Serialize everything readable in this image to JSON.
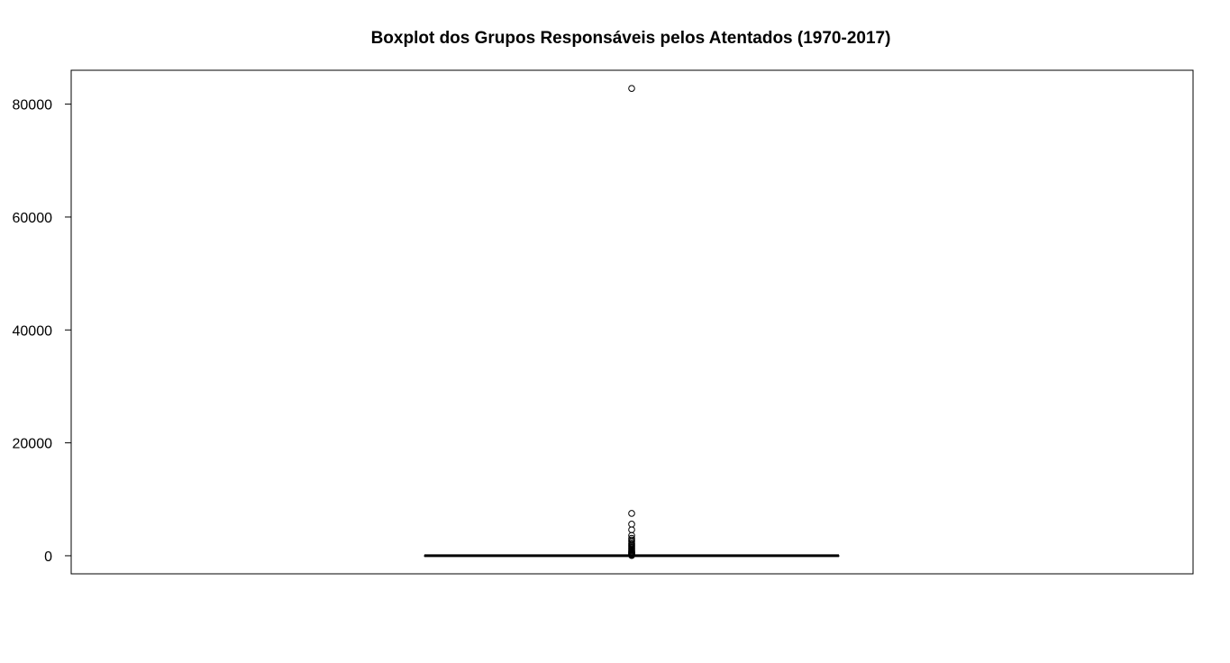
{
  "chart_data": {
    "type": "boxplot",
    "title": "Boxplot dos Grupos Responsáveis pelos Atentados (1970-2017)",
    "xlabel": "",
    "ylabel": "",
    "ylim": [
      -3200,
      86000
    ],
    "yticks": [
      0,
      20000,
      40000,
      60000,
      80000
    ],
    "ytick_labels": [
      "0",
      "20000",
      "40000",
      "60000",
      "80000"
    ],
    "box": {
      "min": 0,
      "q1": 1,
      "median": 3,
      "q3": 15,
      "max": 35
    },
    "outliers": [
      82780,
      7500,
      5600,
      4600,
      3600,
      3100,
      2800,
      2500,
      2200,
      2000,
      1800,
      1600,
      1400,
      1200,
      1000,
      850,
      700,
      600,
      500,
      400,
      300,
      200,
      120,
      80,
      50
    ],
    "grid": false,
    "legend": "none",
    "colors": {
      "box": "#000000",
      "outlier": "#000000",
      "frame": "#000000"
    }
  }
}
